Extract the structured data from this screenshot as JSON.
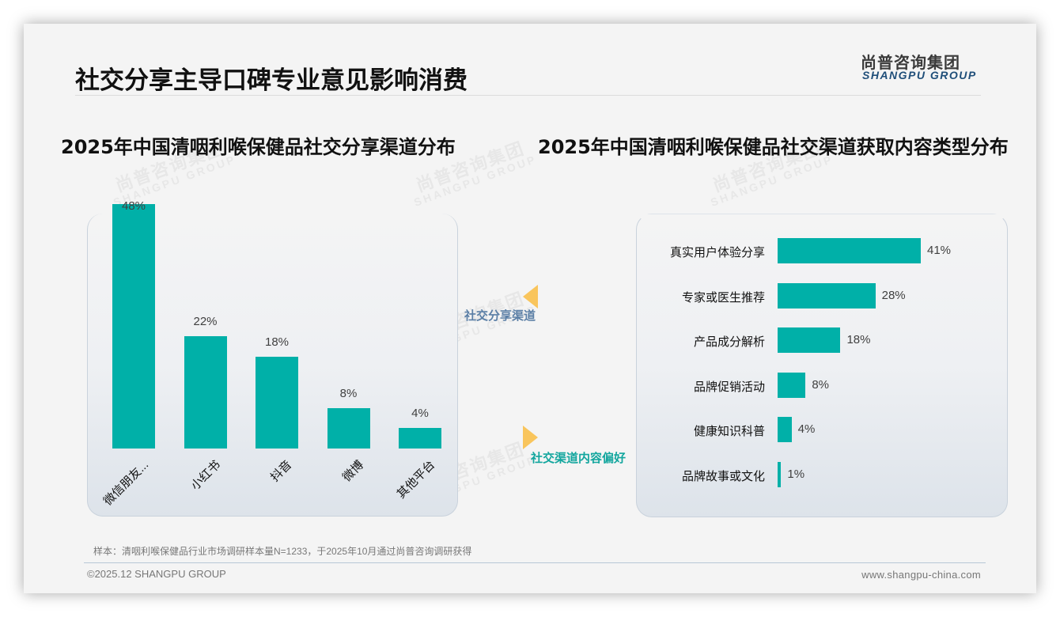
{
  "header": {
    "title": "社交分享主导口碑专业意见影响消费",
    "logo_cn": "尚普咨询集团",
    "logo_en": "SHANGPU GROUP"
  },
  "watermark": {
    "cn": "尚普咨询集团",
    "en": "SHANGPU GROUP"
  },
  "flow": {
    "label_1": "社交分享渠道",
    "label_2": "社交渠道内容偏好"
  },
  "colors": {
    "bar": "#00b0a8",
    "accent_arrow": "#f9c55c",
    "flow_label_1": "#5b7fa6",
    "flow_label_2": "#13a69e",
    "logo_en": "#1f4e79"
  },
  "footer": {
    "note": "样本：清咽利喉保健品行业市场调研样本量N=1233，于2025年10月通过尚普咨询调研获得",
    "copyright": "©2025.12 SHANGPU GROUP",
    "website": "www.shangpu-china.com"
  },
  "chart_data": [
    {
      "type": "bar",
      "title": "2025年中国清咽利喉保健品社交分享渠道分布",
      "categories": [
        "微信朋友...",
        "小红书",
        "抖音",
        "微博",
        "其他平台"
      ],
      "values": [
        48,
        22,
        18,
        8,
        4
      ],
      "value_labels": [
        "48%",
        "22%",
        "18%",
        "8%",
        "4%"
      ],
      "xlabel": "",
      "ylabel": "",
      "unit": "%",
      "ylim": [
        0,
        48
      ],
      "grid": false,
      "legend": null,
      "orientation": "vertical"
    },
    {
      "type": "bar",
      "title": "2025年中国清咽利喉保健品社交渠道获取内容类型分布",
      "categories": [
        "真实用户体验分享",
        "专家或医生推荐",
        "产品成分解析",
        "品牌促销活动",
        "健康知识科普",
        "品牌故事或文化"
      ],
      "values": [
        41,
        28,
        18,
        8,
        4,
        1
      ],
      "value_labels": [
        "41%",
        "28%",
        "18%",
        "8%",
        "4%",
        "1%"
      ],
      "xlabel": "",
      "ylabel": "",
      "unit": "%",
      "xlim": [
        0,
        41
      ],
      "grid": false,
      "legend": null,
      "orientation": "horizontal"
    }
  ]
}
